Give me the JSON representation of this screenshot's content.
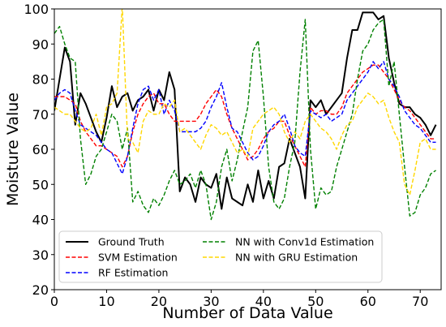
{
  "chart_data": {
    "type": "line",
    "xlabel": "Number of Data Value",
    "ylabel": "Moisture Value",
    "xlim": [
      0,
      74
    ],
    "ylim": [
      20,
      100
    ],
    "xticks": [
      0,
      10,
      20,
      30,
      40,
      50,
      60,
      70
    ],
    "yticks": [
      20,
      30,
      40,
      50,
      60,
      70,
      80,
      90,
      100
    ],
    "grid": false,
    "legend_position": "bottom-left",
    "series": [
      {
        "name": "Ground Truth",
        "color": "#000000",
        "dash": "solid",
        "values": [
          71,
          80,
          89,
          85,
          67,
          76,
          73,
          69,
          65,
          62,
          69,
          78,
          72,
          75,
          76,
          71,
          74,
          75,
          77,
          71,
          77,
          74,
          82,
          77,
          48,
          52,
          50,
          45,
          52,
          50,
          49,
          53,
          43,
          52,
          46,
          45,
          44,
          50,
          45,
          54,
          46,
          51,
          46,
          55,
          56,
          63,
          59,
          55,
          46,
          74,
          72,
          74,
          70,
          72,
          74,
          76,
          86,
          94,
          94,
          99,
          99,
          99,
          97,
          98,
          86,
          79,
          73,
          72,
          72,
          70,
          69,
          67,
          64,
          67
        ]
      },
      {
        "name": "SVM Estimation",
        "color": "#ff0000",
        "dash": "dashed",
        "values": [
          75,
          75,
          75,
          74,
          73,
          68,
          65,
          63,
          61,
          61,
          60,
          59,
          58,
          55,
          58,
          65,
          70,
          73,
          75,
          76,
          73,
          73,
          70,
          68,
          68,
          68,
          68,
          68,
          70,
          73,
          75,
          77,
          75,
          70,
          66,
          63,
          60,
          57,
          58,
          60,
          63,
          65,
          66,
          68,
          68,
          64,
          61,
          58,
          55,
          72,
          70,
          71,
          71,
          70,
          70,
          72,
          76,
          78,
          80,
          82,
          83,
          84,
          84,
          82,
          80,
          77,
          74,
          72,
          71,
          69,
          67,
          65,
          63,
          63
        ]
      },
      {
        "name": "RF Estimation",
        "color": "#0000ff",
        "dash": "dashed",
        "values": [
          74,
          76,
          77,
          76,
          71,
          67,
          66,
          65,
          64,
          62,
          60,
          59,
          56,
          53,
          58,
          66,
          73,
          77,
          78,
          74,
          77,
          70,
          74,
          71,
          65,
          65,
          65,
          65,
          66,
          68,
          72,
          75,
          79,
          72,
          66,
          65,
          62,
          59,
          57,
          58,
          61,
          65,
          67,
          68,
          70,
          66,
          61,
          59,
          58,
          71,
          70,
          69,
          70,
          68,
          69,
          70,
          74,
          76,
          78,
          80,
          82,
          85,
          83,
          85,
          80,
          78,
          75,
          71,
          69,
          67,
          66,
          64,
          62,
          62
        ]
      },
      {
        "name": "NN with Conv1d Estimation",
        "color": "#008000",
        "dash": "dashed",
        "values": [
          93,
          95,
          90,
          86,
          85,
          63,
          50,
          53,
          58,
          60,
          65,
          70,
          68,
          60,
          66,
          45,
          48,
          44,
          42,
          46,
          44,
          47,
          51,
          54,
          50,
          51,
          53,
          49,
          54,
          50,
          40,
          45,
          55,
          60,
          51,
          57,
          65,
          72,
          88,
          91,
          75,
          55,
          45,
          43,
          46,
          55,
          62,
          82,
          97,
          60,
          43,
          49,
          47,
          48,
          55,
          60,
          65,
          70,
          80,
          88,
          90,
          94,
          96,
          97,
          78,
          85,
          70,
          55,
          41,
          42,
          47,
          49,
          53,
          54
        ]
      },
      {
        "name": "NN with GRU Estimation",
        "color": "#ffd700",
        "dash": "dashed",
        "values": [
          72,
          71,
          70,
          70,
          68,
          66,
          65,
          66,
          70,
          64,
          72,
          73,
          76,
          101,
          63,
          62,
          59,
          68,
          71,
          70,
          70,
          73,
          72,
          74,
          65,
          66,
          64,
          62,
          60,
          64,
          67,
          66,
          64,
          65,
          62,
          59,
          60,
          58,
          66,
          68,
          70,
          71,
          72,
          70,
          65,
          62,
          65,
          63,
          68,
          70,
          68,
          66,
          65,
          63,
          60,
          64,
          67,
          68,
          72,
          74,
          76,
          75,
          73,
          74,
          69,
          65,
          62,
          50,
          47,
          54,
          62,
          63,
          60,
          60
        ]
      }
    ]
  }
}
